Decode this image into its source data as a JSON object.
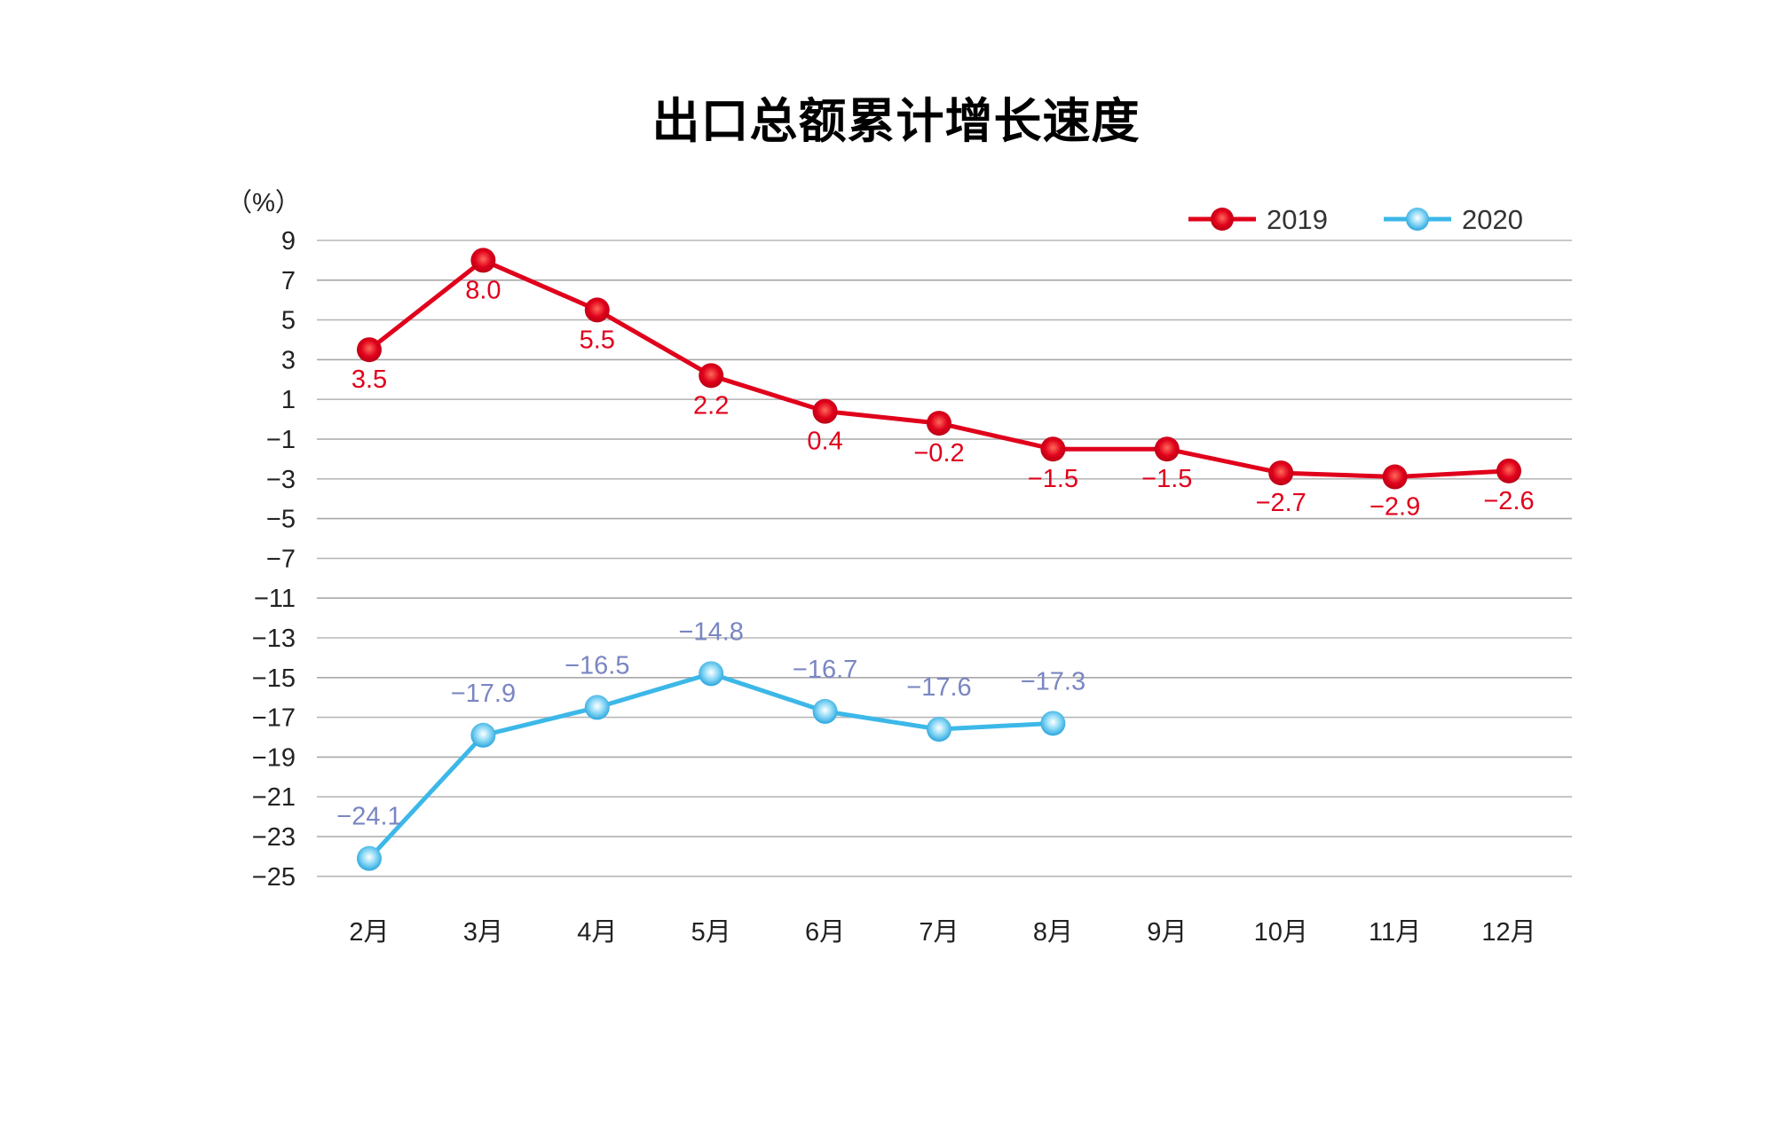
{
  "chart_data": {
    "type": "line",
    "title": "出口总额累计增长速度",
    "ylabel": "（%）",
    "xlabel": "",
    "categories": [
      "2月",
      "3月",
      "4月",
      "5月",
      "6月",
      "7月",
      "8月",
      "9月",
      "10月",
      "11月",
      "12月"
    ],
    "yticks": [
      9,
      7,
      5,
      3,
      1,
      -1,
      -3,
      -5,
      -7,
      -11,
      -13,
      -15,
      -17,
      -19,
      -21,
      -23,
      -25
    ],
    "ylim": [
      -25,
      9
    ],
    "axis_break": [
      -7,
      -11
    ],
    "grid": true,
    "legend": "top-right",
    "series": [
      {
        "name": "2019",
        "color": "#e0001b",
        "values": [
          3.5,
          8.0,
          5.5,
          2.2,
          0.4,
          -0.2,
          -1.5,
          -1.5,
          -2.7,
          -2.9,
          -2.6
        ]
      },
      {
        "name": "2020",
        "color": "#3cb8e8",
        "label_color": "#7a86c2",
        "values": [
          -24.1,
          -17.9,
          -16.5,
          -14.8,
          -16.7,
          -17.6,
          -17.3,
          null,
          null,
          null,
          null
        ]
      }
    ]
  }
}
